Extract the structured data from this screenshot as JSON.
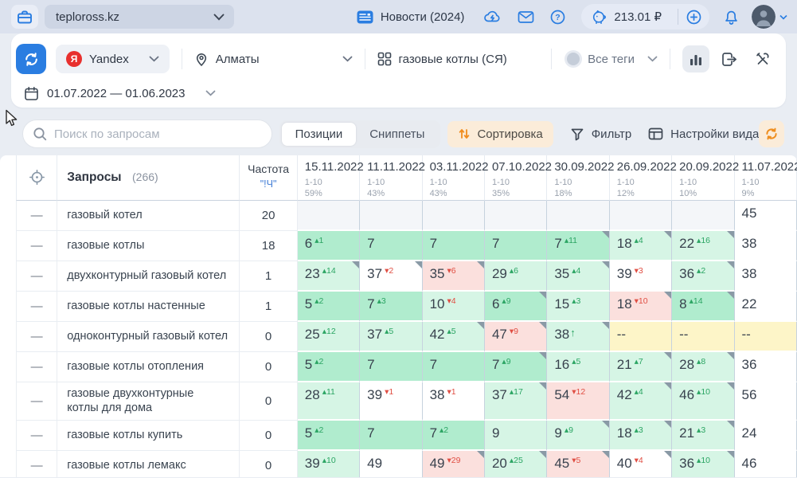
{
  "topbar": {
    "project_name": "teploross.kz",
    "news_label": "Новости (2024)",
    "balance": "213.01 ₽"
  },
  "filters": {
    "search_engine": "Yandex",
    "region": "Алматы",
    "group": "газовые котлы (СЯ)",
    "all_tags_label": "Все теги",
    "date_range": "01.07.2022 — 01.06.2023"
  },
  "controls": {
    "search_placeholder": "Поиск по запросам",
    "tab_positions": "Позиции",
    "tab_snippets": "Сниппеты",
    "sort_label": "Сортировка",
    "filter_label": "Фильтр",
    "view_settings_label": "Настройки вида"
  },
  "table": {
    "queries_label": "Запросы",
    "queries_count": "(266)",
    "frequency_label": "Частота",
    "frequency_modifier": "\"!Ч\"",
    "columns": [
      {
        "date": "15.11.2022",
        "range": "1-10",
        "percent": "59%"
      },
      {
        "date": "11.11.2022",
        "range": "1-10",
        "percent": "43%"
      },
      {
        "date": "03.11.2022",
        "range": "1-10",
        "percent": "43%"
      },
      {
        "date": "07.10.2022",
        "range": "1-10",
        "percent": "35%"
      },
      {
        "date": "30.09.2022",
        "range": "1-10",
        "percent": "18%"
      },
      {
        "date": "26.09.2022",
        "range": "1-10",
        "percent": "12%"
      },
      {
        "date": "20.09.2022",
        "range": "1-10",
        "percent": "10%"
      },
      {
        "date": "11.07.2022",
        "range": "1-10",
        "percent": "9%"
      }
    ],
    "rows": [
      {
        "query": "газовый котел",
        "frequency": "20",
        "cells": [
          {
            "bg": "gy"
          },
          {
            "bg": "gy"
          },
          {
            "bg": "gy"
          },
          {
            "bg": "gy"
          },
          {
            "bg": "gy"
          },
          {
            "bg": "gy"
          },
          {
            "bg": "gy"
          },
          {
            "pos": "45",
            "bg": "wh"
          }
        ]
      },
      {
        "query": "газовые котлы",
        "frequency": "18",
        "cells": [
          {
            "pos": "6",
            "delta": "1",
            "dir": "up",
            "bg": "g2"
          },
          {
            "pos": "7",
            "bg": "g2"
          },
          {
            "pos": "7",
            "bg": "g2"
          },
          {
            "pos": "7",
            "bg": "g2"
          },
          {
            "pos": "7",
            "delta": "11",
            "dir": "up",
            "bg": "g2",
            "note": true
          },
          {
            "pos": "18",
            "delta": "4",
            "dir": "up",
            "bg": "g1",
            "note": true
          },
          {
            "pos": "22",
            "delta": "16",
            "dir": "up",
            "bg": "g1",
            "note": true
          },
          {
            "pos": "38",
            "bg": "wh"
          }
        ]
      },
      {
        "query": "двухконтурный газовый котел",
        "frequency": "1",
        "cells": [
          {
            "pos": "23",
            "delta": "14",
            "dir": "up",
            "bg": "g1",
            "note": true
          },
          {
            "pos": "37",
            "delta": "2",
            "dir": "down",
            "bg": "wh",
            "note": true
          },
          {
            "pos": "35",
            "delta": "6",
            "dir": "down",
            "bg": "pk",
            "note": true
          },
          {
            "pos": "29",
            "delta": "6",
            "dir": "up",
            "bg": "g1"
          },
          {
            "pos": "35",
            "delta": "4",
            "dir": "up",
            "bg": "g1",
            "note": true
          },
          {
            "pos": "39",
            "delta": "3",
            "dir": "down",
            "bg": "wh"
          },
          {
            "pos": "36",
            "delta": "2",
            "dir": "up",
            "bg": "g1",
            "note": true
          },
          {
            "pos": "38",
            "bg": "wh"
          }
        ]
      },
      {
        "query": "газовые котлы настенные",
        "frequency": "1",
        "cells": [
          {
            "pos": "5",
            "delta": "2",
            "dir": "up",
            "bg": "g2"
          },
          {
            "pos": "7",
            "delta": "3",
            "dir": "up",
            "bg": "g2"
          },
          {
            "pos": "10",
            "delta": "4",
            "dir": "down",
            "bg": "g1"
          },
          {
            "pos": "6",
            "delta": "9",
            "dir": "up",
            "bg": "g2",
            "note": true
          },
          {
            "pos": "15",
            "delta": "3",
            "dir": "up",
            "bg": "g1"
          },
          {
            "pos": "18",
            "delta": "10",
            "dir": "down",
            "bg": "pk",
            "note": true
          },
          {
            "pos": "8",
            "delta": "14",
            "dir": "up",
            "bg": "g2",
            "note": true
          },
          {
            "pos": "22",
            "bg": "wh"
          }
        ]
      },
      {
        "query": "одноконтурный газовый котел",
        "frequency": "0",
        "cells": [
          {
            "pos": "25",
            "delta": "12",
            "dir": "up",
            "bg": "g1"
          },
          {
            "pos": "37",
            "delta": "5",
            "dir": "up",
            "bg": "g1"
          },
          {
            "pos": "42",
            "delta": "5",
            "dir": "up",
            "bg": "g1",
            "note": true
          },
          {
            "pos": "47",
            "delta": "9",
            "dir": "down",
            "bg": "pk",
            "note": true
          },
          {
            "pos": "38",
            "arrow": "up",
            "bg": "g1",
            "note": true
          },
          {
            "pos": "--",
            "bg": "yl"
          },
          {
            "pos": "--",
            "bg": "yl"
          },
          {
            "pos": "--",
            "bg": "yl"
          }
        ]
      },
      {
        "query": "газовые котлы отопления",
        "frequency": "0",
        "cells": [
          {
            "pos": "5",
            "delta": "2",
            "dir": "up",
            "bg": "g2"
          },
          {
            "pos": "7",
            "bg": "g2"
          },
          {
            "pos": "7",
            "bg": "g2"
          },
          {
            "pos": "7",
            "delta": "9",
            "dir": "up",
            "bg": "g2",
            "note": true
          },
          {
            "pos": "16",
            "delta": "5",
            "dir": "up",
            "bg": "g1"
          },
          {
            "pos": "21",
            "delta": "7",
            "dir": "up",
            "bg": "g1",
            "note": true
          },
          {
            "pos": "28",
            "delta": "8",
            "dir": "up",
            "bg": "g1",
            "note": true
          },
          {
            "pos": "36",
            "bg": "wh"
          }
        ]
      },
      {
        "query": "газовые двухконтурные котлы для дома",
        "frequency": "0",
        "cells": [
          {
            "pos": "28",
            "delta": "11",
            "dir": "up",
            "bg": "g1"
          },
          {
            "pos": "39",
            "delta": "1",
            "dir": "down",
            "bg": "wh"
          },
          {
            "pos": "38",
            "delta": "1",
            "dir": "down",
            "bg": "wh"
          },
          {
            "pos": "37",
            "delta": "17",
            "dir": "up",
            "bg": "g1",
            "note": true
          },
          {
            "pos": "54",
            "delta": "12",
            "dir": "down",
            "bg": "pk"
          },
          {
            "pos": "42",
            "delta": "4",
            "dir": "up",
            "bg": "g1",
            "note": true
          },
          {
            "pos": "46",
            "delta": "10",
            "dir": "up",
            "bg": "g1",
            "note": true
          },
          {
            "pos": "56",
            "bg": "wh"
          }
        ]
      },
      {
        "query": "газовые котлы купить",
        "frequency": "0",
        "cells": [
          {
            "pos": "5",
            "delta": "2",
            "dir": "up",
            "bg": "g2"
          },
          {
            "pos": "7",
            "bg": "g2"
          },
          {
            "pos": "7",
            "delta": "2",
            "dir": "up",
            "bg": "g2"
          },
          {
            "pos": "9",
            "bg": "g1"
          },
          {
            "pos": "9",
            "delta": "9",
            "dir": "up",
            "bg": "g1",
            "note": true
          },
          {
            "pos": "18",
            "delta": "3",
            "dir": "up",
            "bg": "g1",
            "note": true
          },
          {
            "pos": "21",
            "delta": "3",
            "dir": "up",
            "bg": "g1",
            "note": true
          },
          {
            "pos": "24",
            "bg": "wh"
          }
        ]
      },
      {
        "query": "газовые котлы лемакс",
        "frequency": "0",
        "cells": [
          {
            "pos": "39",
            "delta": "10",
            "dir": "up",
            "bg": "g1"
          },
          {
            "pos": "49",
            "bg": "wh"
          },
          {
            "pos": "49",
            "delta": "29",
            "dir": "down",
            "bg": "pk",
            "note": true
          },
          {
            "pos": "20",
            "delta": "25",
            "dir": "up",
            "bg": "g1",
            "note": true
          },
          {
            "pos": "45",
            "delta": "5",
            "dir": "down",
            "bg": "pk",
            "note": true
          },
          {
            "pos": "40",
            "delta": "4",
            "dir": "down",
            "bg": "wh",
            "note": true
          },
          {
            "pos": "36",
            "delta": "10",
            "dir": "up",
            "bg": "g1",
            "note": true
          },
          {
            "pos": "46",
            "bg": "wh"
          }
        ]
      }
    ]
  },
  "colors": {
    "accent_blue": "#2a7de1",
    "yandex_red": "#e8302e",
    "green_strong": "#b0ecce",
    "green_light": "#d6f5e5",
    "red_light": "#fbe0dd",
    "yellow_light": "#fdf5c8",
    "orange": "#ef8e1e"
  },
  "icons": {
    "briefcase-icon": "briefcase",
    "chevron-down-icon": "chevron",
    "news-icon": "newspaper",
    "sync-cloud-icon": "cloud-arrows",
    "mail-icon": "envelope",
    "help-icon": "question-circle",
    "balance-icon": "piggy-bank",
    "add-funds-icon": "plus-circle",
    "notifications-icon": "bell",
    "avatar": "person-silhouette",
    "refresh-icon": "circular-arrows",
    "yandex-logo": "Я",
    "region-icon": "map-pin",
    "group-icon": "grid-squares",
    "all-tags-icon": "gray-dot",
    "chart-icon": "bar-chart",
    "export-icon": "file-export",
    "tools-icon": "hammer-wrench",
    "calendar-icon": "calendar",
    "search-icon": "magnifier",
    "sort-icon": "arrows-up-down",
    "filter-icon": "funnel",
    "view-settings-icon": "table-layout",
    "update-icon": "circular-arrows-orange",
    "crosshair-icon": "target",
    "snippet-corner-marker": "corner-triangle",
    "mouse-cursor": "arrow-pointer"
  }
}
